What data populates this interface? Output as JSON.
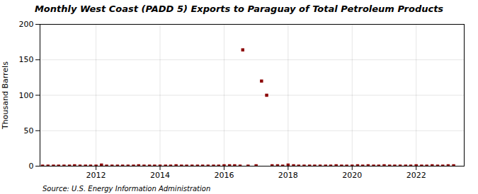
{
  "chart_data": {
    "type": "scatter",
    "title": "Monthly West Coast (PADD 5) Exports to Paraguay of Total Petroleum Products",
    "ylabel": "Thousand Barrels",
    "source": "Source: U.S. Energy Information Administration",
    "color": "#8b0000",
    "marker": "square",
    "grid": true,
    "xlim": [
      2010.25,
      2023.5
    ],
    "xticks": [
      2012,
      2014,
      2016,
      2018,
      2020,
      2022
    ],
    "ylim": [
      0,
      200
    ],
    "yticks": [
      0,
      50,
      100,
      150,
      200
    ],
    "x": [
      2010.33,
      2010.5,
      2010.67,
      2010.83,
      2011.0,
      2011.17,
      2011.33,
      2011.5,
      2011.67,
      2011.83,
      2012.0,
      2012.17,
      2012.33,
      2012.5,
      2012.67,
      2012.83,
      2013.0,
      2013.17,
      2013.33,
      2013.5,
      2013.67,
      2013.83,
      2014.0,
      2014.17,
      2014.33,
      2014.5,
      2014.67,
      2014.83,
      2015.0,
      2015.17,
      2015.33,
      2015.5,
      2015.67,
      2015.83,
      2016.0,
      2016.17,
      2016.33,
      2016.5,
      2016.583,
      2016.75,
      2017.0,
      2017.17,
      2017.33,
      2017.5,
      2017.67,
      2017.83,
      2018.0,
      2018.17,
      2018.33,
      2018.5,
      2018.67,
      2018.83,
      2019.0,
      2019.17,
      2019.33,
      2019.5,
      2019.67,
      2019.83,
      2020.0,
      2020.17,
      2020.33,
      2020.5,
      2020.67,
      2020.83,
      2021.0,
      2021.17,
      2021.33,
      2021.5,
      2021.67,
      2021.83,
      2022.0,
      2022.17,
      2022.33,
      2022.5,
      2022.67,
      2022.83,
      2023.0,
      2023.17
    ],
    "values": [
      0,
      0,
      0,
      0,
      0,
      0,
      0.5,
      0,
      0,
      0,
      0,
      1.5,
      0,
      0,
      0,
      0,
      0,
      0,
      0.5,
      0,
      0,
      0,
      0,
      0,
      0,
      0.5,
      0,
      0,
      0,
      0,
      0,
      0,
      0,
      0,
      0.5,
      0.5,
      0.5,
      0,
      164,
      0,
      0.5,
      120,
      100,
      0.5,
      0.5,
      0,
      1.5,
      0.5,
      0,
      0,
      0,
      0,
      0,
      0,
      0,
      0.5,
      0,
      0,
      0,
      0.5,
      0,
      0.5,
      0,
      0,
      0.5,
      0,
      0,
      0,
      0,
      0,
      0.5,
      0,
      0,
      0.5,
      0,
      0,
      0.5,
      0.5
    ]
  }
}
